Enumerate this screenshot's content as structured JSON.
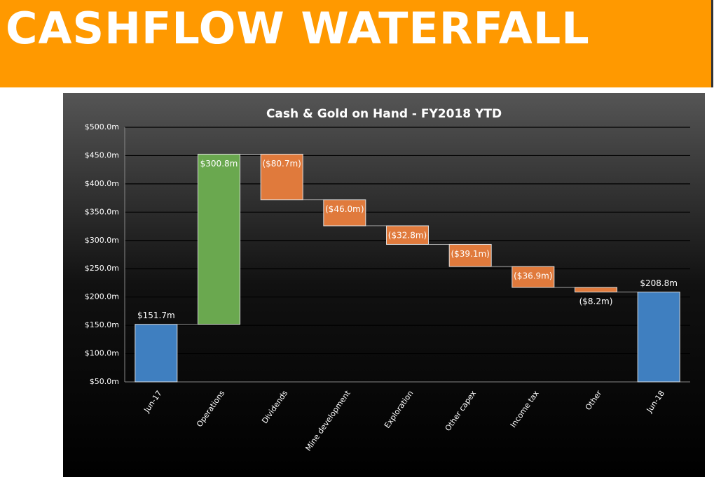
{
  "header": {
    "title": "CASHFLOW WATERFALL"
  },
  "chart_data": {
    "type": "waterfall",
    "title": "Cash & Gold on Hand - FY2018 YTD",
    "categories": [
      "Jun-17",
      "Operations",
      "Dividends",
      "Mine development",
      "Exploration",
      "Other capex",
      "Income tax",
      "Other",
      "Jun-18"
    ],
    "values": [
      151.7,
      300.8,
      -80.7,
      -46.0,
      -32.8,
      -39.1,
      -36.9,
      -8.2,
      208.8
    ],
    "value_labels": [
      "$151.7m",
      "$300.8m",
      "($80.7m)",
      "($46.0m)",
      "($32.8m)",
      "($39.1m)",
      "($36.9m)",
      "($8.2m)",
      "$208.8m"
    ],
    "ylim": [
      50,
      500
    ],
    "yticks": [
      {
        "value": 50,
        "label": "$50.0m"
      },
      {
        "value": 100,
        "label": "$100.0m"
      },
      {
        "value": 150,
        "label": "$150.0m"
      },
      {
        "value": 200,
        "label": "$200.0m"
      },
      {
        "value": 250,
        "label": "$250.0m"
      },
      {
        "value": 300,
        "label": "$300.0m"
      },
      {
        "value": 350,
        "label": "$350.0m"
      },
      {
        "value": 400,
        "label": "$400.0m"
      },
      {
        "value": 450,
        "label": "$450.0m"
      },
      {
        "value": 500,
        "label": "$500.0m"
      }
    ],
    "grid": true,
    "total_color": "#3f7fc0",
    "increase_color": "#6aa84f",
    "decrease_color": "#e07a3c"
  }
}
